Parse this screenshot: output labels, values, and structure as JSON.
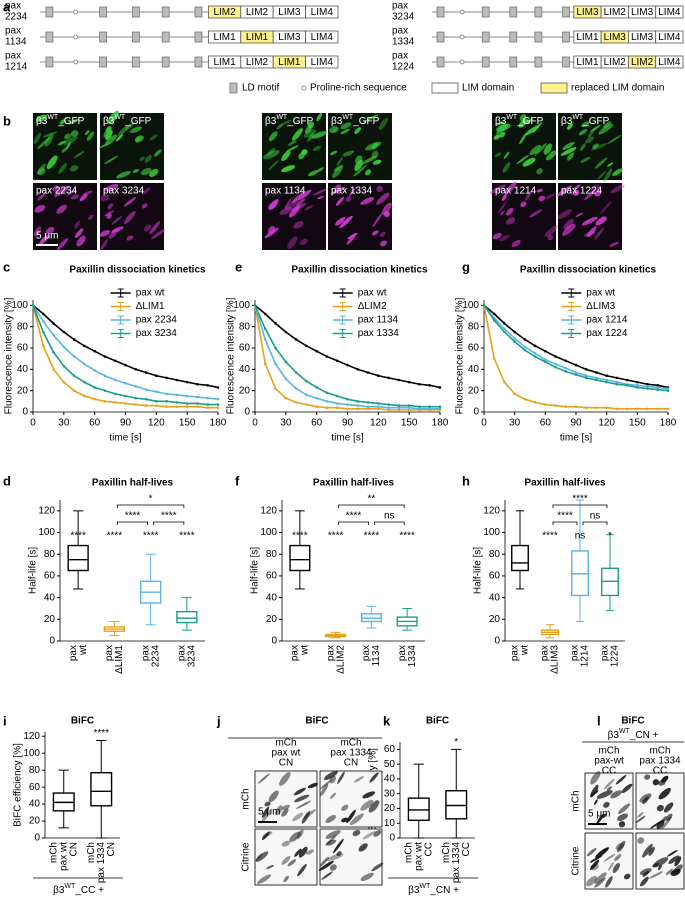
{
  "panel_labels": [
    "a",
    "b",
    "c",
    "d",
    "e",
    "f",
    "g",
    "h",
    "i",
    "j",
    "k",
    "l"
  ],
  "panel_a": {
    "constructs": [
      {
        "name": [
          "pax",
          "2234"
        ],
        "lims": [
          "LIM2",
          "LIM2",
          "LIM3",
          "LIM4"
        ],
        "replaced": 0
      },
      {
        "name": [
          "pax",
          "1134"
        ],
        "lims": [
          "LIM1",
          "LIM1",
          "LIM3",
          "LIM4"
        ],
        "replaced": 1
      },
      {
        "name": [
          "pax",
          "1214"
        ],
        "lims": [
          "LIM1",
          "LIM2",
          "LIM1",
          "LIM4"
        ],
        "replaced": 2
      },
      {
        "name": [
          "pax",
          "3234"
        ],
        "lims": [
          "LIM3",
          "LIM2",
          "LIM3",
          "LIM4"
        ],
        "replaced": 0
      },
      {
        "name": [
          "pax",
          "1334"
        ],
        "lims": [
          "LIM1",
          "LIM3",
          "LIM3",
          "LIM4"
        ],
        "replaced": 1
      },
      {
        "name": [
          "pax",
          "1224"
        ],
        "lims": [
          "LIM1",
          "LIM2",
          "LIM2",
          "LIM4"
        ],
        "replaced": 2
      }
    ],
    "legend": [
      "LD motif",
      "Proline-rich sequence",
      "LIM domain",
      "replaced LIM domain"
    ]
  },
  "panel_b": {
    "tiles": [
      {
        "top": {
          "base": "β3",
          "sup": "WT",
          "rest": "_GFP"
        },
        "bottom": "pax 2234"
      },
      {
        "top": {
          "base": "β3",
          "sup": "WT",
          "rest": "_GFP"
        },
        "bottom": "pax 3234"
      },
      {
        "top": {
          "base": "β3",
          "sup": "WT",
          "rest": "_GFP"
        },
        "bottom": "pax 1134"
      },
      {
        "top": {
          "base": "β3",
          "sup": "WT",
          "rest": "_GFP"
        },
        "bottom": "pax 1334"
      },
      {
        "top": {
          "base": "β3",
          "sup": "WT",
          "rest": "_GFP"
        },
        "bottom": "pax 1214"
      },
      {
        "top": {
          "base": "β3",
          "sup": "WT",
          "rest": "_GFP"
        },
        "bottom": "pax 1224"
      }
    ],
    "scale": "5 μm"
  },
  "chart_data": [
    {
      "type": "line",
      "title": "Paxillin dissociation kinetics",
      "xlabel": "time [s]",
      "ylabel": "Fluorescence intensity [%]",
      "x": [
        0,
        10,
        20,
        30,
        40,
        50,
        60,
        70,
        80,
        90,
        100,
        110,
        120,
        130,
        140,
        150,
        160,
        170,
        180
      ],
      "xlim": [
        0,
        180
      ],
      "xticks": [
        0,
        30,
        60,
        90,
        120,
        150,
        180
      ],
      "ylim": [
        0,
        105
      ],
      "yticks": [
        0,
        20,
        40,
        60,
        80,
        100
      ],
      "series": [
        {
          "name": "pax wt",
          "color": "#000000",
          "values": [
            100,
            92,
            83,
            75,
            68,
            62,
            57,
            52,
            48,
            44,
            40,
            37,
            34,
            32,
            30,
            28,
            26,
            25,
            23
          ]
        },
        {
          "name": "ΔLIM1",
          "color": "#e6a21b",
          "values": [
            100,
            62,
            40,
            28,
            20,
            15,
            12,
            10,
            9,
            8,
            7,
            6,
            6,
            5,
            5,
            5,
            5,
            4,
            4
          ]
        },
        {
          "name": "pax 2234",
          "color": "#5ab4e5",
          "values": [
            100,
            85,
            72,
            61,
            52,
            45,
            39,
            34,
            30,
            27,
            24,
            21,
            19,
            17,
            16,
            15,
            14,
            13,
            12
          ]
        },
        {
          "name": "pax 3234",
          "color": "#1b9e89",
          "values": [
            100,
            75,
            56,
            43,
            34,
            28,
            23,
            20,
            17,
            15,
            13,
            12,
            10,
            10,
            9,
            8,
            8,
            7,
            7
          ]
        }
      ]
    },
    {
      "type": "box",
      "title": "Paxillin half-lives",
      "ylabel": "Half-life [s]",
      "categories": [
        [
          "pax",
          "wt"
        ],
        [
          "pax",
          "ΔLIM1"
        ],
        [
          "pax",
          "2234"
        ],
        [
          "pax",
          "3234"
        ]
      ],
      "ylim": [
        0,
        130
      ],
      "yticks": [
        0,
        20,
        40,
        60,
        80,
        100,
        120
      ],
      "boxes": [
        {
          "color": "#000000",
          "min": 48,
          "q1": 65,
          "median": 75,
          "q3": 88,
          "max": 120
        },
        {
          "color": "#e6a21b",
          "min": 5,
          "q1": 9,
          "median": 11,
          "q3": 13,
          "max": 18
        },
        {
          "color": "#5ab4e5",
          "min": 15,
          "q1": 35,
          "median": 45,
          "q3": 55,
          "max": 80
        },
        {
          "color": "#1b9e89",
          "min": 10,
          "q1": 17,
          "median": 21,
          "q3": 27,
          "max": 40
        }
      ],
      "significance": [
        "****",
        "****",
        "****",
        "****"
      ],
      "comparisons": [
        {
          "label": "****",
          "between": [
            1,
            2
          ]
        },
        {
          "label": "****",
          "between": [
            2,
            3
          ]
        },
        {
          "label": "*",
          "between": [
            1,
            3
          ]
        }
      ]
    },
    {
      "type": "line",
      "title": "Paxillin dissociation kinetics",
      "xlabel": "time [s]",
      "ylabel": "Fluorescence intensity [%]",
      "x": [
        0,
        10,
        20,
        30,
        40,
        50,
        60,
        70,
        80,
        90,
        100,
        110,
        120,
        130,
        140,
        150,
        160,
        170,
        180
      ],
      "xlim": [
        0,
        180
      ],
      "xticks": [
        0,
        30,
        60,
        90,
        120,
        150,
        180
      ],
      "ylim": [
        0,
        105
      ],
      "yticks": [
        0,
        20,
        40,
        60,
        80,
        100
      ],
      "series": [
        {
          "name": "pax wt",
          "color": "#000000",
          "values": [
            100,
            92,
            83,
            75,
            68,
            62,
            57,
            52,
            48,
            44,
            40,
            37,
            34,
            32,
            30,
            28,
            26,
            25,
            23
          ]
        },
        {
          "name": "ΔLIM2",
          "color": "#e6a21b",
          "values": [
            100,
            45,
            22,
            13,
            9,
            7,
            5,
            4,
            4,
            3,
            3,
            3,
            3,
            2,
            2,
            2,
            2,
            2,
            2
          ]
        },
        {
          "name": "pax 1134",
          "color": "#5ab4e5",
          "values": [
            100,
            68,
            45,
            31,
            22,
            16,
            13,
            10,
            8,
            7,
            6,
            5,
            5,
            4,
            4,
            4,
            3,
            3,
            3
          ]
        },
        {
          "name": "pax 1334",
          "color": "#1b9e89",
          "values": [
            100,
            78,
            60,
            47,
            37,
            29,
            23,
            18,
            15,
            12,
            10,
            9,
            8,
            7,
            6,
            6,
            5,
            5,
            5
          ]
        }
      ]
    },
    {
      "type": "box",
      "title": "Paxillin half-lives",
      "ylabel": "Half-life [s]",
      "categories": [
        [
          "pax",
          "wt"
        ],
        [
          "pax",
          "ΔLIM2"
        ],
        [
          "pax",
          "1134"
        ],
        [
          "pax",
          "1334"
        ]
      ],
      "ylim": [
        0,
        130
      ],
      "yticks": [
        0,
        20,
        40,
        60,
        80,
        100,
        120
      ],
      "boxes": [
        {
          "color": "#000000",
          "min": 48,
          "q1": 65,
          "median": 75,
          "q3": 88,
          "max": 120
        },
        {
          "color": "#e6a21b",
          "min": 3,
          "q1": 4,
          "median": 5,
          "q3": 6,
          "max": 8
        },
        {
          "color": "#5ab4e5",
          "min": 12,
          "q1": 18,
          "median": 21,
          "q3": 25,
          "max": 32
        },
        {
          "color": "#1b9e89",
          "min": 10,
          "q1": 14,
          "median": 18,
          "q3": 22,
          "max": 30
        }
      ],
      "significance": [
        "****",
        "****",
        "****",
        "****"
      ],
      "comparisons": [
        {
          "label": "****",
          "between": [
            1,
            2
          ]
        },
        {
          "label": "ns",
          "between": [
            2,
            3
          ]
        },
        {
          "label": "**",
          "between": [
            1,
            3
          ]
        }
      ]
    },
    {
      "type": "line",
      "title": "Paxillin dissociation kinetics",
      "xlabel": "time [s]",
      "ylabel": "Fluorescence intensity [%]",
      "x": [
        0,
        10,
        20,
        30,
        40,
        50,
        60,
        70,
        80,
        90,
        100,
        110,
        120,
        130,
        140,
        150,
        160,
        170,
        180
      ],
      "xlim": [
        0,
        180
      ],
      "xticks": [
        0,
        30,
        60,
        90,
        120,
        150,
        180
      ],
      "ylim": [
        0,
        105
      ],
      "yticks": [
        0,
        20,
        40,
        60,
        80,
        100
      ],
      "series": [
        {
          "name": "pax wt",
          "color": "#000000",
          "values": [
            100,
            92,
            83,
            75,
            68,
            62,
            57,
            52,
            48,
            44,
            40,
            37,
            34,
            32,
            30,
            28,
            26,
            25,
            23
          ]
        },
        {
          "name": "ΔLIM3",
          "color": "#e6a21b",
          "values": [
            100,
            50,
            28,
            17,
            12,
            9,
            7,
            6,
            5,
            5,
            4,
            4,
            4,
            3,
            3,
            3,
            3,
            3,
            3
          ]
        },
        {
          "name": "pax 1214",
          "color": "#5ab4e5",
          "values": [
            100,
            88,
            78,
            69,
            61,
            55,
            49,
            45,
            41,
            37,
            34,
            32,
            30,
            28,
            26,
            25,
            24,
            23,
            22
          ]
        },
        {
          "name": "pax 1224",
          "color": "#1b9e89",
          "values": [
            100,
            86,
            75,
            66,
            58,
            52,
            47,
            42,
            38,
            35,
            32,
            30,
            28,
            26,
            25,
            23,
            22,
            21,
            20
          ]
        }
      ]
    },
    {
      "type": "box",
      "title": "Paxillin half-lives",
      "ylabel": "Half-life [s]",
      "categories": [
        [
          "pax",
          "wt"
        ],
        [
          "pax",
          "ΔLIM3"
        ],
        [
          "pax",
          "1214"
        ],
        [
          "pax",
          "1224"
        ]
      ],
      "ylim": [
        0,
        130
      ],
      "yticks": [
        0,
        20,
        40,
        60,
        80,
        100,
        120
      ],
      "boxes": [
        {
          "color": "#000000",
          "min": 48,
          "q1": 65,
          "median": 72,
          "q3": 88,
          "max": 120
        },
        {
          "color": "#e6a21b",
          "min": 3,
          "q1": 6,
          "median": 8,
          "q3": 10,
          "max": 15
        },
        {
          "color": "#5ab4e5",
          "min": 18,
          "q1": 42,
          "median": 62,
          "q3": 83,
          "max": 130
        },
        {
          "color": "#1b9e89",
          "min": 28,
          "q1": 42,
          "median": 55,
          "q3": 67,
          "max": 98
        }
      ],
      "significance": [
        null,
        "****",
        "ns",
        "*"
      ],
      "comparisons": [
        {
          "label": "****",
          "between": [
            1,
            2
          ]
        },
        {
          "label": "ns",
          "between": [
            2,
            3
          ]
        },
        {
          "label": "****",
          "between": [
            1,
            3
          ]
        }
      ]
    },
    {
      "type": "box",
      "title": "BiFC",
      "ylabel": "BiFC efficiency [%]",
      "categories": [
        [
          "mCh",
          "pax wt",
          "CN"
        ],
        [
          "mCh",
          "pax 1334",
          "CN"
        ]
      ],
      "ylim": [
        0,
        125
      ],
      "yticks": [
        0,
        20,
        40,
        60,
        80,
        100,
        120
      ],
      "boxes": [
        {
          "color": "#000000",
          "min": 12,
          "q1": 32,
          "median": 42,
          "q3": 53,
          "max": 80
        },
        {
          "color": "#000000",
          "min": 0,
          "q1": 38,
          "median": 55,
          "q3": 77,
          "max": 115
        }
      ],
      "significance": [
        null,
        "****"
      ],
      "footnote": {
        "base": "β3",
        "sup": "WT",
        "rest": "_CC +"
      }
    },
    {
      "type": "box",
      "title": "BiFC",
      "ylabel": "BiFC efficiency [%]",
      "categories": [
        [
          "mCh",
          "pax wt",
          "CC"
        ],
        [
          "mCh",
          "pax 1334",
          "CC"
        ]
      ],
      "ylim": [
        0,
        65
      ],
      "yticks": [
        0,
        10,
        20,
        30,
        40,
        50,
        60
      ],
      "boxes": [
        {
          "color": "#000000",
          "min": 0,
          "q1": 12,
          "median": 19,
          "q3": 27,
          "max": 50
        },
        {
          "color": "#000000",
          "min": 0,
          "q1": 13,
          "median": 22,
          "q3": 32,
          "max": 60
        }
      ],
      "significance": [
        null,
        "*"
      ],
      "footnote": {
        "base": "β3",
        "sup": "WT",
        "rest": "_CN +"
      }
    }
  ],
  "panel_j": {
    "title": "BiFC",
    "columns": [
      [
        "mCh",
        "pax wt",
        "CN"
      ],
      [
        "mCh",
        "pax 1334",
        "CN"
      ]
    ],
    "rows": [
      "mCh",
      "Citrine"
    ],
    "scale": "5 μm"
  },
  "panel_l": {
    "title": "BiFC",
    "header": {
      "base": "β3",
      "sup": "WT",
      "rest": "_CN +"
    },
    "columns": [
      [
        "mCh",
        "pax-wt",
        "CC"
      ],
      [
        "mCh",
        "pax 1334",
        "CC"
      ]
    ],
    "rows": [
      "mCh",
      "Citrine"
    ],
    "scale": "5 μm"
  }
}
